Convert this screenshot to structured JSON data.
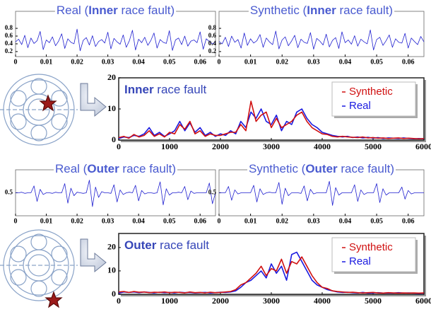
{
  "chart_data": [
    {
      "type": "line",
      "title": [
        "Real (",
        "Inner",
        " race fault)"
      ],
      "color": "#2020d0",
      "x": [
        0,
        0.001,
        0.002,
        0.003,
        0.004,
        0.005,
        0.006,
        0.007,
        0.008,
        0.009,
        0.01,
        0.011,
        0.012,
        0.013,
        0.014,
        0.015,
        0.016,
        0.017,
        0.018,
        0.019,
        0.02,
        0.021,
        0.022,
        0.023,
        0.024,
        0.025,
        0.026,
        0.027,
        0.028,
        0.029,
        0.03,
        0.031,
        0.032,
        0.033,
        0.034,
        0.035,
        0.036,
        0.037,
        0.038,
        0.039,
        0.04,
        0.041,
        0.042,
        0.043,
        0.044,
        0.045,
        0.046,
        0.047,
        0.048,
        0.049,
        0.05,
        0.051,
        0.052,
        0.053,
        0.054,
        0.055,
        0.056,
        0.057,
        0.058,
        0.059,
        0.06,
        0.061,
        0.062,
        0.063,
        0.064,
        0.065
      ],
      "values": [
        0.45,
        0.52,
        0.38,
        0.62,
        0.3,
        0.55,
        0.41,
        0.48,
        0.72,
        0.25,
        0.5,
        0.43,
        0.58,
        0.35,
        0.47,
        0.66,
        0.28,
        0.53,
        0.44,
        0.4,
        0.78,
        0.22,
        0.49,
        0.56,
        0.37,
        0.61,
        0.33,
        0.46,
        0.51,
        0.42,
        0.7,
        0.27,
        0.54,
        0.45,
        0.39,
        0.63,
        0.31,
        0.48,
        0.75,
        0.24,
        0.52,
        0.43,
        0.57,
        0.36,
        0.49,
        0.68,
        0.29,
        0.51,
        0.44,
        0.41,
        0.74,
        0.23,
        0.5,
        0.55,
        0.38,
        0.6,
        0.34,
        0.47,
        0.5,
        0.43,
        0.71,
        0.26,
        0.53,
        0.46,
        0.4,
        0.45
      ],
      "xlim": [
        0,
        0.065
      ],
      "xticks": [
        0,
        0.01,
        0.02,
        0.03,
        0.04,
        0.05,
        0.06
      ],
      "ylim": [
        0.07,
        1.24
      ],
      "yticks": [
        0.2,
        0.4,
        0.6,
        0.8
      ]
    },
    {
      "type": "line",
      "title": [
        "Synthetic (",
        "Inner",
        " race fault)"
      ],
      "color": "#2020d0",
      "x": [
        0,
        0.001,
        0.002,
        0.003,
        0.004,
        0.005,
        0.006,
        0.007,
        0.008,
        0.009,
        0.01,
        0.011,
        0.012,
        0.013,
        0.014,
        0.015,
        0.016,
        0.017,
        0.018,
        0.019,
        0.02,
        0.021,
        0.022,
        0.023,
        0.024,
        0.025,
        0.026,
        0.027,
        0.028,
        0.029,
        0.03,
        0.031,
        0.032,
        0.033,
        0.034,
        0.035,
        0.036,
        0.037,
        0.038,
        0.039,
        0.04,
        0.041,
        0.042,
        0.043,
        0.044,
        0.045,
        0.046,
        0.047,
        0.048,
        0.049,
        0.05,
        0.051,
        0.052,
        0.053,
        0.054,
        0.055,
        0.056,
        0.057,
        0.058,
        0.059,
        0.06,
        0.061,
        0.062,
        0.063,
        0.064,
        0.065
      ],
      "values": [
        0.46,
        0.4,
        0.57,
        0.33,
        0.6,
        0.44,
        0.51,
        0.29,
        0.68,
        0.36,
        0.53,
        0.42,
        0.48,
        0.64,
        0.31,
        0.55,
        0.45,
        0.38,
        0.73,
        0.27,
        0.5,
        0.58,
        0.35,
        0.47,
        0.62,
        0.3,
        0.52,
        0.44,
        0.41,
        0.69,
        0.26,
        0.54,
        0.47,
        0.37,
        0.65,
        0.32,
        0.49,
        0.56,
        0.28,
        0.71,
        0.43,
        0.5,
        0.39,
        0.61,
        0.34,
        0.52,
        0.45,
        0.4,
        0.76,
        0.24,
        0.51,
        0.57,
        0.36,
        0.48,
        0.63,
        0.31,
        0.53,
        0.44,
        0.42,
        0.67,
        0.29,
        0.55,
        0.46,
        0.38,
        0.59,
        0.45
      ],
      "xlim": [
        0,
        0.065
      ],
      "xticks": [
        0,
        0.01,
        0.02,
        0.03,
        0.04,
        0.05,
        0.06
      ],
      "ylim": [
        0.07,
        1.24
      ],
      "yticks": [
        0.2,
        0.4,
        0.6,
        0.8
      ]
    },
    {
      "type": "line",
      "annotation": [
        "Inner",
        " race fault"
      ],
      "x": [
        0,
        100,
        200,
        300,
        400,
        500,
        600,
        700,
        800,
        900,
        1000,
        1100,
        1200,
        1300,
        1400,
        1500,
        1600,
        1700,
        1800,
        1900,
        2000,
        2100,
        2200,
        2300,
        2400,
        2500,
        2600,
        2700,
        2800,
        2900,
        3000,
        3100,
        3200,
        3300,
        3400,
        3500,
        3600,
        3700,
        3800,
        3900,
        4000,
        4100,
        4200,
        4300,
        4400,
        4500,
        4600,
        4700,
        4800,
        4900,
        5000,
        5100,
        5200,
        5300,
        5400,
        5500,
        5600,
        5700,
        5800,
        5900,
        6000
      ],
      "series": [
        {
          "name": "Synthetic",
          "color": "#d01010",
          "values": [
            0.8,
            1.2,
            0.6,
            1.8,
            1,
            1.5,
            3,
            1.2,
            2,
            1,
            2.5,
            2,
            5,
            3.5,
            6,
            2,
            3,
            1.2,
            2,
            1.5,
            1.5,
            2,
            2.5,
            2.5,
            5,
            3,
            12.5,
            6,
            8,
            9,
            4,
            7,
            4,
            5,
            6,
            8,
            9,
            6,
            4,
            3,
            2,
            1.8,
            1.2,
            1,
            1.2,
            1,
            0.9,
            0.8,
            1,
            0.7,
            0.8,
            0.6,
            0.7,
            0.5,
            0.6,
            0.7,
            0.5,
            0.6,
            0.5,
            0.4,
            0.5
          ]
        },
        {
          "name": "Real",
          "color": "#1a1ae0",
          "values": [
            0.5,
            1,
            0.8,
            1.5,
            1.2,
            2,
            4,
            1.5,
            2.5,
            1.2,
            2,
            3,
            6,
            3,
            5.5,
            2.5,
            4,
            1.5,
            2.5,
            1.2,
            2,
            1.5,
            3,
            2,
            6,
            4,
            9,
            7,
            10,
            6,
            5,
            8,
            3,
            6,
            5,
            9,
            10,
            7,
            5,
            4,
            2.5,
            2,
            1.5,
            1.2,
            1,
            1.2,
            0.8,
            1,
            0.7,
            0.9,
            0.6,
            0.8,
            0.5,
            0.7,
            0.6,
            0.5,
            0.7,
            0.5,
            0.4,
            0.5,
            0.4
          ]
        }
      ],
      "xlim": [
        0,
        6000
      ],
      "xticks": [
        0,
        1000,
        2000,
        3000,
        4000,
        5000,
        6000
      ],
      "ylim": [
        0,
        20
      ],
      "yticks": [
        0,
        10,
        20
      ]
    },
    {
      "type": "line",
      "title": [
        "Real (",
        "Outer",
        " race fault)"
      ],
      "color": "#2020d0",
      "x": [
        0,
        0.001,
        0.002,
        0.003,
        0.004,
        0.005,
        0.006,
        0.007,
        0.008,
        0.009,
        0.01,
        0.011,
        0.012,
        0.013,
        0.014,
        0.015,
        0.016,
        0.017,
        0.018,
        0.019,
        0.02,
        0.021,
        0.022,
        0.023,
        0.024,
        0.025,
        0.026,
        0.027,
        0.028,
        0.029,
        0.03,
        0.031,
        0.032,
        0.033,
        0.034,
        0.035,
        0.036,
        0.037,
        0.038,
        0.039,
        0.04,
        0.041,
        0.042,
        0.043,
        0.044,
        0.045,
        0.046,
        0.047,
        0.048,
        0.049,
        0.05,
        0.051,
        0.052,
        0.053,
        0.054,
        0.055,
        0.056,
        0.057,
        0.058,
        0.059,
        0.06,
        0.061,
        0.062,
        0.063,
        0.064,
        0.065
      ],
      "values": [
        0.5,
        0.5,
        0.51,
        0.49,
        0.5,
        0.5,
        0.62,
        0.35,
        0.56,
        0.47,
        0.5,
        0.5,
        0.49,
        0.51,
        0.5,
        0.5,
        0.66,
        0.32,
        0.58,
        0.45,
        0.51,
        0.5,
        0.49,
        0.5,
        0.72,
        0.26,
        0.6,
        0.42,
        0.52,
        0.5,
        0.5,
        0.49,
        0.64,
        0.34,
        0.55,
        0.47,
        0.5,
        0.51,
        0.5,
        0.63,
        0.36,
        0.54,
        0.48,
        0.5,
        0.5,
        0.49,
        0.5,
        0.69,
        0.29,
        0.57,
        0.46,
        0.5,
        0.5,
        0.51,
        0.5,
        0.61,
        0.38,
        0.53,
        0.49,
        0.5,
        0.5,
        0.5,
        0.5,
        0.67,
        0.31,
        0.5
      ],
      "xlim": [
        0,
        0.065
      ],
      "xticks": [
        0,
        0.01,
        0.02,
        0.03,
        0.04,
        0.05,
        0.06
      ],
      "ylim": [
        0.1,
        0.9
      ],
      "yticks": [
        0.5
      ]
    },
    {
      "type": "line",
      "title": [
        "Synthetic (",
        "Outer",
        " race fault)"
      ],
      "color": "#2020d0",
      "x": [
        0,
        0.001,
        0.002,
        0.003,
        0.004,
        0.005,
        0.006,
        0.007,
        0.008,
        0.009,
        0.01,
        0.011,
        0.012,
        0.013,
        0.014,
        0.015,
        0.016,
        0.017,
        0.018,
        0.019,
        0.02,
        0.021,
        0.022,
        0.023,
        0.024,
        0.025,
        0.026,
        0.027,
        0.028,
        0.029,
        0.03,
        0.031,
        0.032,
        0.033,
        0.034,
        0.035,
        0.036,
        0.037,
        0.038,
        0.039,
        0.04,
        0.041,
        0.042,
        0.043,
        0.044,
        0.045,
        0.046,
        0.047,
        0.048,
        0.049,
        0.05,
        0.051,
        0.052,
        0.053,
        0.054,
        0.055,
        0.056,
        0.057,
        0.058,
        0.059,
        0.06,
        0.061,
        0.062,
        0.063,
        0.064,
        0.065
      ],
      "values": [
        0.5,
        0.5,
        0.5,
        0.61,
        0.37,
        0.55,
        0.48,
        0.5,
        0.5,
        0.5,
        0.5,
        0.63,
        0.34,
        0.57,
        0.47,
        0.5,
        0.51,
        0.5,
        0.5,
        0.68,
        0.3,
        0.58,
        0.45,
        0.5,
        0.5,
        0.5,
        0.49,
        0.62,
        0.36,
        0.56,
        0.48,
        0.5,
        0.5,
        0.5,
        0.5,
        0.7,
        0.28,
        0.59,
        0.46,
        0.5,
        0.5,
        0.5,
        0.5,
        0.64,
        0.35,
        0.55,
        0.47,
        0.5,
        0.5,
        0.5,
        0.66,
        0.33,
        0.57,
        0.46,
        0.5,
        0.5,
        0.5,
        0.5,
        0.6,
        0.39,
        0.54,
        0.48,
        0.5,
        0.5,
        0.5,
        0.5
      ],
      "xlim": [
        0,
        0.065
      ],
      "xticks": [
        0,
        0.01,
        0.02,
        0.03,
        0.04,
        0.05,
        0.06
      ],
      "ylim": [
        0.1,
        0.9
      ],
      "yticks": [
        0.5
      ]
    },
    {
      "type": "line",
      "annotation": [
        "Outer",
        " race fault"
      ],
      "x": [
        0,
        100,
        200,
        300,
        400,
        500,
        600,
        700,
        800,
        900,
        1000,
        1100,
        1200,
        1300,
        1400,
        1500,
        1600,
        1700,
        1800,
        1900,
        2000,
        2100,
        2200,
        2300,
        2400,
        2500,
        2600,
        2700,
        2800,
        2900,
        3000,
        3100,
        3200,
        3300,
        3400,
        3500,
        3600,
        3700,
        3800,
        3900,
        4000,
        4100,
        4200,
        4300,
        4400,
        4500,
        4600,
        4700,
        4800,
        4900,
        5000,
        5100,
        5200,
        5300,
        5400,
        5500,
        5600,
        5700,
        5800,
        5900,
        6000
      ],
      "series": [
        {
          "name": "Synthetic",
          "color": "#d01010",
          "values": [
            1,
            1.2,
            0.8,
            1.2,
            0.9,
            1,
            0.7,
            0.9,
            0.8,
            1,
            0.7,
            0.9,
            0.8,
            0.6,
            1,
            0.7,
            0.8,
            0.6,
            0.9,
            0.7,
            0.8,
            1,
            1.2,
            2,
            4,
            5,
            7,
            9,
            12,
            8,
            11,
            10,
            15,
            9,
            14,
            13,
            16,
            12,
            8,
            5,
            3,
            2.5,
            1.5,
            1.2,
            1,
            0.8,
            0.9,
            0.7,
            0.6,
            0.7,
            0.8,
            0.6,
            0.5,
            0.7,
            0.6,
            0.5,
            0.6,
            0.5,
            0.6,
            0.5,
            0.6
          ]
        },
        {
          "name": "Real",
          "color": "#1a1ae0",
          "values": [
            0.5,
            1,
            0.8,
            1,
            0.7,
            1,
            0.8,
            0.6,
            0.9,
            0.7,
            0.8,
            0.6,
            0.9,
            0.7,
            0.8,
            0.6,
            0.7,
            0.8,
            0.6,
            0.7,
            0.9,
            0.8,
            1,
            1.5,
            3,
            5,
            6,
            8,
            10,
            7,
            13,
            9,
            12,
            6,
            17,
            18,
            14,
            10,
            6,
            4,
            3,
            2,
            1.5,
            1,
            0.8,
            0.9,
            0.7,
            0.6,
            0.8,
            0.5,
            0.6,
            0.7,
            0.5,
            0.6,
            0.5,
            0.7,
            0.5,
            0.6,
            0.5,
            0.4,
            0.5
          ]
        }
      ],
      "xlim": [
        0,
        6000
      ],
      "xticks": [
        0,
        1000,
        2000,
        3000,
        4000,
        5000,
        6000
      ],
      "ylim": [
        0,
        26
      ],
      "yticks": [
        0,
        10,
        20
      ]
    }
  ]
}
